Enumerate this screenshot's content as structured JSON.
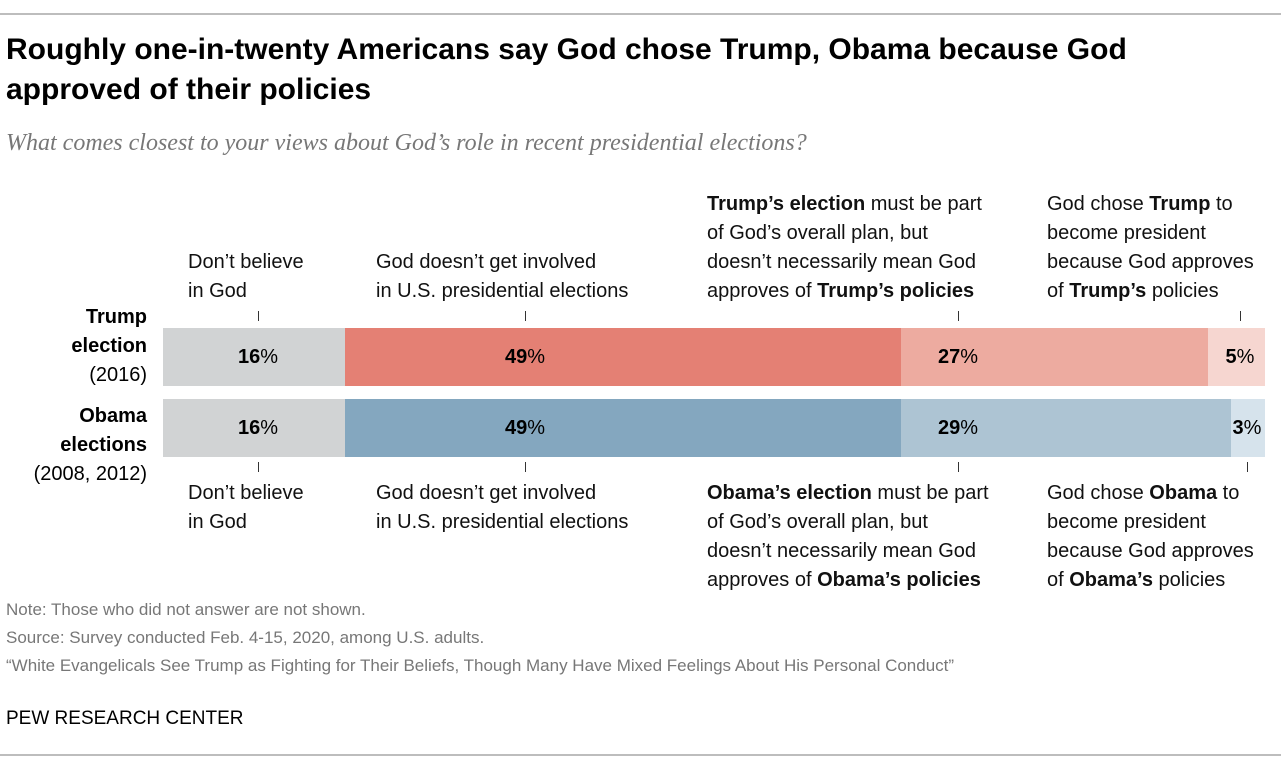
{
  "chart_data": {
    "type": "bar",
    "orientation": "horizontal-stacked",
    "title": "Roughly one-in-twenty Americans say God chose Trump, Obama because God approved of their policies",
    "subtitle": "What comes closest to your views about God’s role in recent presidential elections?",
    "categories": [
      {
        "bold": "Trump",
        "bold2": "election",
        "normal": "(2016)"
      },
      {
        "bold": "Obama",
        "bold2": "elections",
        "normal": "(2008, 2012)"
      }
    ],
    "series_values": [
      {
        "values": [
          16,
          49,
          27,
          5
        ],
        "labels": [
          "16",
          "49",
          "27",
          "5"
        ],
        "colors": [
          "#d1d3d4",
          "#e48074",
          "#edaba0",
          "#f6d6d0"
        ]
      },
      {
        "values": [
          16,
          49,
          29,
          3
        ],
        "labels": [
          "16",
          "49",
          "29",
          "3"
        ],
        "colors": [
          "#d1d3d4",
          "#84a7bf",
          "#adc4d3",
          "#d6e3ec"
        ]
      }
    ],
    "unit": "%",
    "top_labels": [
      [
        [
          {
            "t": "Don’t believe",
            "b": false
          }
        ],
        [
          {
            "t": "in God",
            "b": false
          }
        ]
      ],
      [
        [
          {
            "t": "God doesn’t get involved",
            "b": false
          }
        ],
        [
          {
            "t": "in U.S. presidential elections",
            "b": false
          }
        ]
      ],
      [
        [
          {
            "t": "Trump’s election",
            "b": true
          },
          {
            "t": " must be part",
            "b": false
          }
        ],
        [
          {
            "t": "of God’s overall plan, but",
            "b": false
          }
        ],
        [
          {
            "t": "doesn’t necessarily mean God",
            "b": false
          }
        ],
        [
          {
            "t": "approves of ",
            "b": false
          },
          {
            "t": "Trump’s policies",
            "b": true
          }
        ]
      ],
      [
        [
          {
            "t": "God chose ",
            "b": false
          },
          {
            "t": "Trump",
            "b": true
          },
          {
            "t": " to",
            "b": false
          }
        ],
        [
          {
            "t": "become president",
            "b": false
          }
        ],
        [
          {
            "t": "because God approves",
            "b": false
          }
        ],
        [
          {
            "t": "of ",
            "b": false
          },
          {
            "t": "Trump’s",
            "b": true
          },
          {
            "t": " policies",
            "b": false
          }
        ]
      ]
    ],
    "bottom_labels": [
      [
        [
          {
            "t": "Don’t believe",
            "b": false
          }
        ],
        [
          {
            "t": "in God",
            "b": false
          }
        ]
      ],
      [
        [
          {
            "t": "God doesn’t get involved",
            "b": false
          }
        ],
        [
          {
            "t": "in U.S. presidential elections",
            "b": false
          }
        ]
      ],
      [
        [
          {
            "t": "Obama’s election",
            "b": true
          },
          {
            "t": " must be part",
            "b": false
          }
        ],
        [
          {
            "t": "of God’s overall plan, but",
            "b": false
          }
        ],
        [
          {
            "t": "doesn’t necessarily mean God",
            "b": false
          }
        ],
        [
          {
            "t": "approves of ",
            "b": false
          },
          {
            "t": "Obama’s policies",
            "b": true
          }
        ]
      ],
      [
        [
          {
            "t": "God chose ",
            "b": false
          },
          {
            "t": "Obama",
            "b": true
          },
          {
            "t": " to",
            "b": false
          }
        ],
        [
          {
            "t": "become president",
            "b": false
          }
        ],
        [
          {
            "t": "because God approves",
            "b": false
          }
        ],
        [
          {
            "t": "of ",
            "b": false
          },
          {
            "t": "Obama’s",
            "b": true
          },
          {
            "t": " policies",
            "b": false
          }
        ]
      ]
    ]
  },
  "footer": {
    "note": "Note: Those who did not answer are not shown.",
    "source": "Source: Survey conducted Feb. 4-15, 2020, among U.S. adults.",
    "report": "“White Evangelicals See Trump as Fighting for Their Beliefs, Though Many Have Mixed Feelings About His Personal Conduct”",
    "brand": "PEW RESEARCH CENTER"
  }
}
